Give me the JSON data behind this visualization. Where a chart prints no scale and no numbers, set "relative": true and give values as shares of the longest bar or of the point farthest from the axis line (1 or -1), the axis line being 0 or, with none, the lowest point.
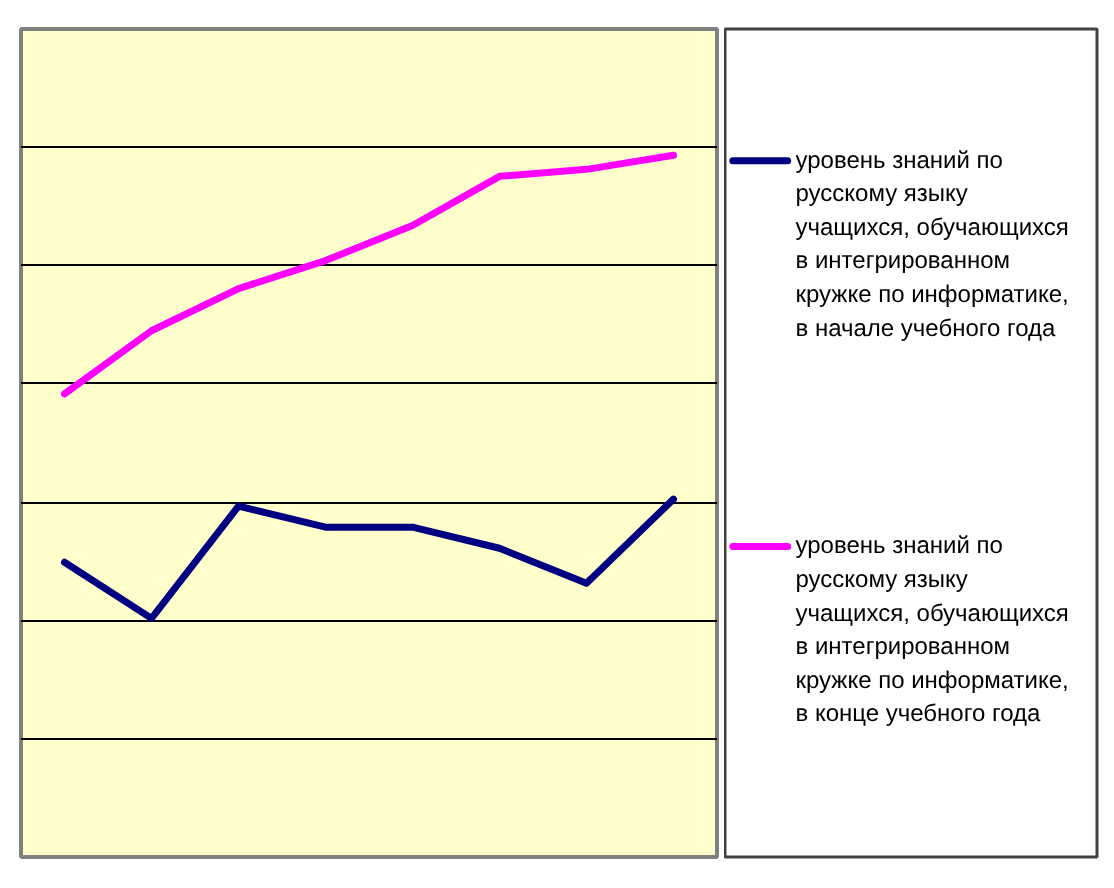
{
  "chart_data": {
    "type": "line",
    "relative": true,
    "categories": [
      null,
      null,
      null,
      null,
      null,
      null,
      null,
      null
    ],
    "grid": "y",
    "legend": "right",
    "series": [
      {
        "name": "уровень знаний  по русскому языку учащихся, обучающихся в интегрированном кружке по информатике, в начале учебного года",
        "color": "#000080",
        "values": [
          0.42,
          0.34,
          0.5,
          0.47,
          0.47,
          0.44,
          0.39,
          0.51
        ]
      },
      {
        "name": "уровень знаний  по русскому языку учащихся, обучающихся в интегрированном кружке по информатике, в конце учебного года",
        "color": "#ff00ff",
        "values": [
          0.66,
          0.75,
          0.81,
          0.85,
          0.9,
          0.97,
          0.98,
          1.0
        ]
      }
    ]
  }
}
